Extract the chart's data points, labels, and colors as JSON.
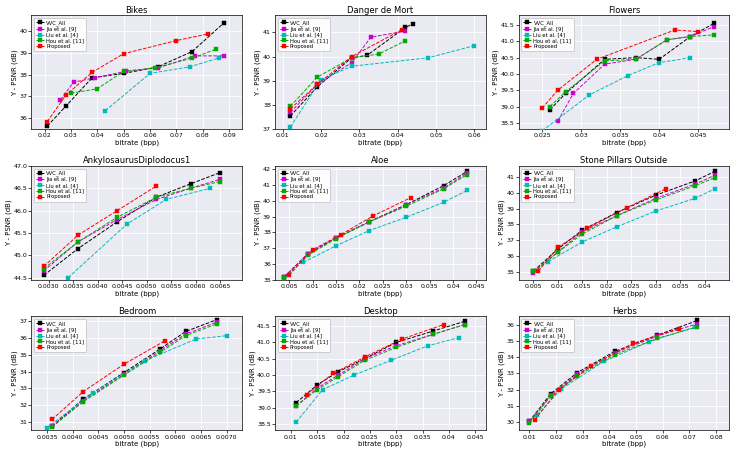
{
  "subplots": [
    {
      "title": "Bikes",
      "xlabel": "bitrate (bpp)",
      "ylabel": "Y - PSNR (dB)",
      "xlim": [
        0.015,
        0.095
      ],
      "ylim": [
        35.5,
        40.7
      ],
      "xticks": [
        0.02,
        0.03,
        0.04,
        0.05,
        0.06,
        0.07,
        0.08,
        0.09
      ],
      "series": {
        "VVC_All": {
          "x": [
            0.021,
            0.028,
            0.038,
            0.05,
            0.063,
            0.076,
            0.088
          ],
          "y": [
            35.65,
            36.55,
            37.85,
            38.05,
            38.35,
            39.05,
            40.35
          ]
        },
        "Jia": {
          "x": [
            0.026,
            0.031,
            0.039,
            0.051,
            0.063,
            0.077,
            0.088
          ],
          "y": [
            36.85,
            37.65,
            37.85,
            38.15,
            38.3,
            38.85,
            38.85
          ]
        },
        "Liu": {
          "x": [
            0.043,
            0.06,
            0.075,
            0.086
          ],
          "y": [
            36.35,
            38.05,
            38.35,
            38.75
          ]
        },
        "Hou": {
          "x": [
            0.03,
            0.04,
            0.05,
            0.062,
            0.076,
            0.085
          ],
          "y": [
            37.15,
            37.35,
            38.15,
            38.3,
            38.75,
            39.15
          ]
        },
        "Proposed": {
          "x": [
            0.021,
            0.028,
            0.038,
            0.05,
            0.07,
            0.082
          ],
          "y": [
            35.85,
            37.05,
            38.1,
            38.95,
            39.55,
            39.85
          ]
        }
      }
    },
    {
      "title": "Danger de Mort",
      "xlabel": "bitrate (bpp)",
      "ylabel": "Y - PSNR (dB)",
      "xlim": [
        0.008,
        0.063
      ],
      "ylim": [
        37.0,
        41.7
      ],
      "xticks": [
        0.01,
        0.02,
        0.03,
        0.04,
        0.05,
        0.06
      ],
      "series": {
        "VVC_All": {
          "x": [
            0.012,
            0.019,
            0.028,
            0.032,
            0.042,
            0.044
          ],
          "y": [
            37.55,
            38.75,
            39.95,
            40.05,
            41.2,
            41.35
          ]
        },
        "Jia": {
          "x": [
            0.012,
            0.019,
            0.028,
            0.033,
            0.042
          ],
          "y": [
            37.7,
            38.85,
            39.75,
            40.8,
            41.05
          ]
        },
        "Liu": {
          "x": [
            0.012,
            0.02,
            0.028,
            0.048,
            0.06
          ],
          "y": [
            37.1,
            39.05,
            39.6,
            39.95,
            40.45
          ]
        },
        "Hou": {
          "x": [
            0.012,
            0.019,
            0.028,
            0.035,
            0.042
          ],
          "y": [
            37.95,
            39.15,
            39.95,
            40.1,
            40.65
          ]
        },
        "Proposed": {
          "x": [
            0.012,
            0.019,
            0.028,
            0.041
          ],
          "y": [
            37.85,
            38.85,
            40.0,
            41.1
          ]
        }
      }
    },
    {
      "title": "Flowers",
      "xlabel": "bitrate (bpp)",
      "ylabel": "Y - PSNR (dB)",
      "xlim": [
        0.022,
        0.049
      ],
      "ylim": [
        38.3,
        41.8
      ],
      "xticks": [
        0.025,
        0.03,
        0.035,
        0.04,
        0.045
      ],
      "series": {
        "VVC_All": {
          "x": [
            0.026,
            0.028,
            0.033,
            0.037,
            0.04,
            0.044,
            0.047
          ],
          "y": [
            38.9,
            39.4,
            40.45,
            40.5,
            40.45,
            41.15,
            41.55
          ]
        },
        "Jia": {
          "x": [
            0.027,
            0.029,
            0.033,
            0.037,
            0.041,
            0.044,
            0.047
          ],
          "y": [
            38.55,
            39.4,
            40.3,
            40.45,
            41.05,
            41.15,
            41.45
          ]
        },
        "Liu": {
          "x": [
            0.025,
            0.031,
            0.036,
            0.04,
            0.044
          ],
          "y": [
            38.25,
            39.35,
            39.95,
            40.35,
            40.5
          ]
        },
        "Hou": {
          "x": [
            0.026,
            0.028,
            0.033,
            0.037,
            0.041,
            0.044,
            0.047
          ],
          "y": [
            39.0,
            39.45,
            40.4,
            40.45,
            41.05,
            41.15,
            41.2
          ]
        },
        "Proposed": {
          "x": [
            0.025,
            0.027,
            0.032,
            0.042,
            0.045
          ],
          "y": [
            38.95,
            39.5,
            40.45,
            41.35,
            41.3
          ]
        }
      }
    },
    {
      "title": "AnkylosaurusDiplodocus1",
      "xlabel": "bitrate (bpp)",
      "ylabel": "Y - PSNR (dB)",
      "xlim": [
        0.00265,
        0.00695
      ],
      "ylim": [
        44.45,
        47.0
      ],
      "xticks": [
        0.003,
        0.0035,
        0.004,
        0.0045,
        0.005,
        0.0055,
        0.006,
        0.0065
      ],
      "series": {
        "VVC_All": {
          "x": [
            0.0029,
            0.0036,
            0.0044,
            0.0052,
            0.0059,
            0.0065
          ],
          "y": [
            44.55,
            45.15,
            45.75,
            46.3,
            46.6,
            46.85
          ]
        },
        "Jia": {
          "x": [
            0.0029,
            0.0036,
            0.0044,
            0.0052,
            0.0059,
            0.0065
          ],
          "y": [
            44.65,
            45.3,
            45.8,
            46.25,
            46.5,
            46.7
          ]
        },
        "Liu": {
          "x": [
            0.0034,
            0.0046,
            0.0054,
            0.0063
          ],
          "y": [
            44.5,
            45.7,
            46.25,
            46.5
          ]
        },
        "Hou": {
          "x": [
            0.0029,
            0.0036,
            0.0044,
            0.0052,
            0.0059,
            0.0065
          ],
          "y": [
            44.7,
            45.3,
            45.85,
            46.3,
            46.5,
            46.65
          ]
        },
        "Proposed": {
          "x": [
            0.0029,
            0.0036,
            0.0044,
            0.0052
          ],
          "y": [
            44.75,
            45.45,
            46.0,
            46.55
          ]
        }
      }
    },
    {
      "title": "Aloe",
      "xlabel": "bitrate (bpp)",
      "ylabel": "Y - PSNR (dB)",
      "xlim": [
        0.002,
        0.047
      ],
      "ylim": [
        35.0,
        42.2
      ],
      "xticks": [
        0.005,
        0.01,
        0.015,
        0.02,
        0.025,
        0.03,
        0.035,
        0.04,
        0.045
      ],
      "series": {
        "VVC_All": {
          "x": [
            0.004,
            0.009,
            0.015,
            0.022,
            0.03,
            0.038,
            0.043
          ],
          "y": [
            35.2,
            36.65,
            37.65,
            38.65,
            39.75,
            40.95,
            41.85
          ]
        },
        "Jia": {
          "x": [
            0.004,
            0.009,
            0.015,
            0.022,
            0.03,
            0.038,
            0.043
          ],
          "y": [
            35.2,
            36.65,
            37.65,
            38.65,
            39.75,
            40.8,
            41.75
          ]
        },
        "Liu": {
          "x": [
            0.008,
            0.015,
            0.022,
            0.03,
            0.038,
            0.043
          ],
          "y": [
            36.1,
            37.15,
            38.1,
            38.95,
            39.9,
            40.65
          ]
        },
        "Hou": {
          "x": [
            0.004,
            0.009,
            0.015,
            0.022,
            0.03,
            0.038,
            0.043
          ],
          "y": [
            35.1,
            36.55,
            37.6,
            38.65,
            39.65,
            40.75,
            41.65
          ]
        },
        "Proposed": {
          "x": [
            0.005,
            0.01,
            0.016,
            0.023,
            0.031
          ],
          "y": [
            35.3,
            36.9,
            37.85,
            39.05,
            40.2
          ]
        }
      }
    },
    {
      "title": "Stone Pillars Outside",
      "xlabel": "bitrate (bpp)",
      "ylabel": "Y - PSNR (dB)",
      "xlim": [
        0.002,
        0.045
      ],
      "ylim": [
        34.5,
        41.7
      ],
      "xticks": [
        0.005,
        0.01,
        0.015,
        0.02,
        0.025,
        0.03,
        0.035,
        0.04
      ],
      "series": {
        "VVC_All": {
          "x": [
            0.005,
            0.01,
            0.015,
            0.022,
            0.03,
            0.038,
            0.042
          ],
          "y": [
            35.05,
            36.45,
            37.65,
            38.75,
            39.85,
            40.75,
            41.35
          ]
        },
        "Jia": {
          "x": [
            0.005,
            0.01,
            0.015,
            0.022,
            0.03,
            0.038,
            0.042
          ],
          "y": [
            34.95,
            36.25,
            37.55,
            38.55,
            39.65,
            40.55,
            41.1
          ]
        },
        "Liu": {
          "x": [
            0.008,
            0.015,
            0.022,
            0.03,
            0.038,
            0.042
          ],
          "y": [
            35.65,
            36.9,
            37.85,
            38.85,
            39.65,
            40.25
          ]
        },
        "Hou": {
          "x": [
            0.005,
            0.01,
            0.015,
            0.022,
            0.03,
            0.038,
            0.042
          ],
          "y": [
            35.05,
            36.25,
            37.4,
            38.55,
            39.55,
            40.45,
            40.95
          ]
        },
        "Proposed": {
          "x": [
            0.006,
            0.01,
            0.016,
            0.024,
            0.032
          ],
          "y": [
            35.05,
            36.55,
            37.75,
            39.05,
            40.25
          ]
        }
      }
    },
    {
      "title": "Bedroom",
      "xlabel": "bitrate (bpp)",
      "ylabel": "Y - PSNR (dB)",
      "xlim": [
        0.0032,
        0.0073
      ],
      "ylim": [
        30.5,
        37.3
      ],
      "xticks": [
        0.0035,
        0.004,
        0.0045,
        0.005,
        0.0055,
        0.006,
        0.0065,
        0.007
      ],
      "series": {
        "VVC_All": {
          "x": [
            0.0036,
            0.0042,
            0.005,
            0.0057,
            0.0062,
            0.0068
          ],
          "y": [
            30.75,
            32.35,
            33.95,
            35.35,
            36.4,
            37.1
          ]
        },
        "Jia": {
          "x": [
            0.0036,
            0.0042,
            0.005,
            0.0057,
            0.0062,
            0.0068
          ],
          "y": [
            30.75,
            32.25,
            33.85,
            35.25,
            36.25,
            36.95
          ]
        },
        "Liu": {
          "x": [
            0.0035,
            0.0044,
            0.0054,
            0.0064,
            0.007
          ],
          "y": [
            30.65,
            32.75,
            34.65,
            35.95,
            36.15
          ]
        },
        "Hou": {
          "x": [
            0.0036,
            0.0042,
            0.005,
            0.0057,
            0.0062,
            0.0068
          ],
          "y": [
            30.7,
            32.2,
            33.8,
            35.15,
            36.15,
            36.85
          ]
        },
        "Proposed": {
          "x": [
            0.0036,
            0.0042,
            0.005,
            0.0058
          ],
          "y": [
            31.15,
            32.8,
            34.45,
            35.85
          ]
        }
      }
    },
    {
      "title": "Desktop",
      "xlabel": "bitrate (bpp)",
      "ylabel": "Y - PSNR (dB)",
      "xlim": [
        0.007,
        0.047
      ],
      "ylim": [
        38.3,
        41.8
      ],
      "xticks": [
        0.01,
        0.015,
        0.02,
        0.025,
        0.03,
        0.035,
        0.04,
        0.045
      ],
      "series": {
        "VVC_All": {
          "x": [
            0.011,
            0.015,
            0.019,
            0.024,
            0.03,
            0.037,
            0.043
          ],
          "y": [
            39.15,
            39.7,
            40.1,
            40.5,
            41.0,
            41.35,
            41.65
          ]
        },
        "Jia": {
          "x": [
            0.011,
            0.015,
            0.019,
            0.024,
            0.03,
            0.037,
            0.043
          ],
          "y": [
            39.05,
            39.6,
            40.0,
            40.5,
            40.9,
            41.25,
            41.55
          ]
        },
        "Liu": {
          "x": [
            0.011,
            0.016,
            0.022,
            0.029,
            0.036,
            0.042
          ],
          "y": [
            38.55,
            39.55,
            40.0,
            40.45,
            40.9,
            41.15
          ]
        },
        "Hou": {
          "x": [
            0.011,
            0.015,
            0.019,
            0.024,
            0.03,
            0.037,
            0.043
          ],
          "y": [
            39.05,
            39.55,
            39.95,
            40.45,
            40.85,
            41.25,
            41.55
          ]
        },
        "Proposed": {
          "x": [
            0.013,
            0.018,
            0.024,
            0.031,
            0.039
          ],
          "y": [
            39.4,
            40.05,
            40.55,
            41.1,
            41.55
          ]
        }
      }
    },
    {
      "title": "Herbs",
      "xlabel": "bitrate (bpp)",
      "ylabel": "Y - PSNR (dB)",
      "xlim": [
        0.006,
        0.085
      ],
      "ylim": [
        29.5,
        36.5
      ],
      "xticks": [
        0.01,
        0.02,
        0.03,
        0.04,
        0.05,
        0.06,
        0.07,
        0.08
      ],
      "series": {
        "VVC_All": {
          "x": [
            0.01,
            0.018,
            0.028,
            0.042,
            0.058,
            0.073
          ],
          "y": [
            30.05,
            31.75,
            33.05,
            34.35,
            35.35,
            36.25
          ]
        },
        "Jia": {
          "x": [
            0.01,
            0.018,
            0.028,
            0.042,
            0.058,
            0.073
          ],
          "y": [
            30.05,
            31.65,
            32.95,
            34.25,
            35.3,
            36.05
          ]
        },
        "Liu": {
          "x": [
            0.013,
            0.022,
            0.038,
            0.055,
            0.072
          ],
          "y": [
            30.45,
            32.05,
            33.75,
            34.95,
            35.85
          ]
        },
        "Hou": {
          "x": [
            0.01,
            0.018,
            0.028,
            0.042,
            0.058,
            0.073
          ],
          "y": [
            29.95,
            31.6,
            32.85,
            34.15,
            35.15,
            35.85
          ]
        },
        "Proposed": {
          "x": [
            0.012,
            0.021,
            0.033,
            0.049,
            0.066
          ],
          "y": [
            30.15,
            32.0,
            33.45,
            34.85,
            35.75
          ]
        }
      }
    }
  ],
  "colors": {
    "VVC_All": "#000000",
    "Jia": "#cc00cc",
    "Liu": "#00bbbb",
    "Hou": "#00aa00",
    "Proposed": "#ff0000"
  },
  "legend_labels": {
    "VVC_All": "VVC_All",
    "Jia": "Jia et al. [9]",
    "Liu": "Liu et al. [4]",
    "Hou": "Hou et al. [11]",
    "Proposed": "Proposed"
  },
  "marker": "s",
  "markersize": 3.0,
  "linewidth": 0.7,
  "linestyle": "--",
  "figsize": [
    7.35,
    4.53
  ],
  "dpi": 100,
  "bg_color": "#eaeaf2",
  "grid_color": "white"
}
